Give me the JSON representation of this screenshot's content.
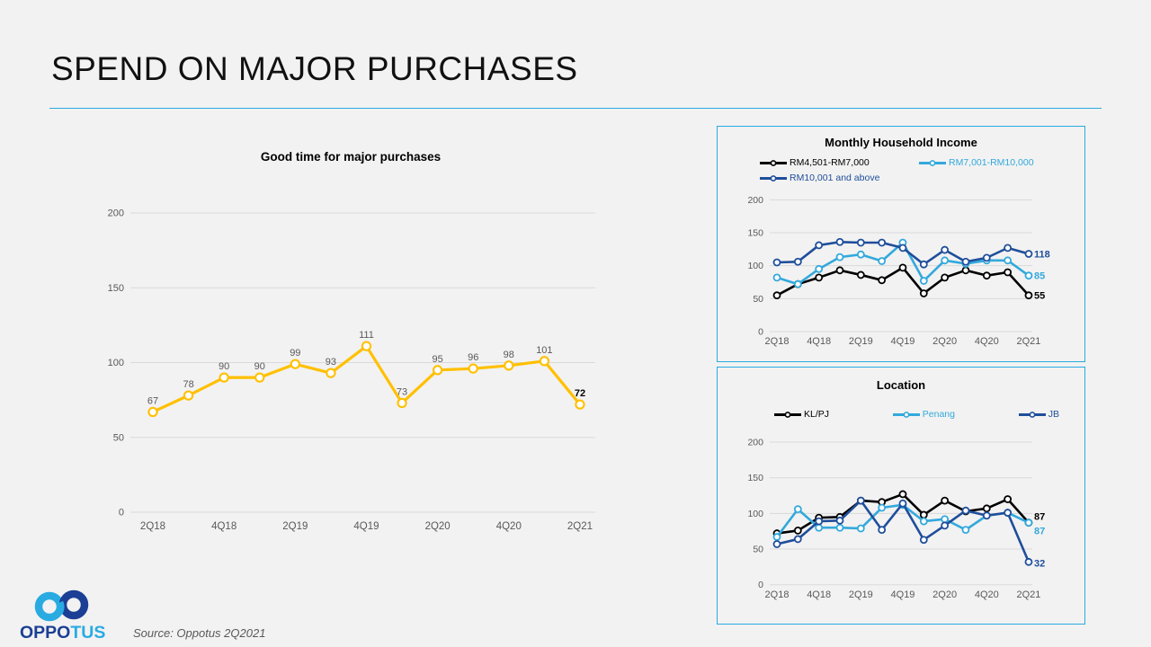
{
  "slide": {
    "title": "SPEND ON MAJOR PURCHASES"
  },
  "colors": {
    "accent": "#29ABE2",
    "slide_bg": "#F2F2F2",
    "grid": "#D9D9D9",
    "axis_text": "#595959",
    "series_yellow": "#FFC000",
    "series_black": "#000000",
    "series_lightblue": "#33A9DC",
    "series_navy": "#1F4E9B",
    "logo_navy": "#1B3F94",
    "logo_blue": "#29ABE2"
  },
  "charts": [
    {
      "type": "line",
      "title": "Good time for major purchases",
      "x_labels": [
        "2Q18",
        "4Q18",
        "2Q19",
        "4Q19",
        "2Q20",
        "4Q20",
        "2Q21"
      ],
      "y_ticks": [
        0,
        50,
        100,
        150,
        200
      ],
      "ylim": [
        0,
        200
      ],
      "legend_position": "none",
      "grid": true,
      "series": [
        {
          "name": "Good time for major purchases",
          "color": "#FFC000",
          "values": [
            67,
            78,
            90,
            90,
            99,
            93,
            111,
            73,
            95,
            96,
            98,
            101,
            72
          ]
        }
      ]
    },
    {
      "type": "line",
      "title": "Monthly Household Income",
      "x_labels": [
        "2Q18",
        "4Q18",
        "2Q19",
        "4Q19",
        "2Q20",
        "4Q20",
        "2Q21"
      ],
      "y_ticks": [
        0,
        50,
        100,
        150,
        200
      ],
      "ylim": [
        0,
        200
      ],
      "legend_position": "top",
      "grid": true,
      "series": [
        {
          "name": "RM4,501-RM7,000",
          "color": "#000000",
          "end_label": "55",
          "values": [
            55,
            72,
            82,
            93,
            86,
            78,
            97,
            58,
            82,
            93,
            85,
            90,
            55
          ]
        },
        {
          "name": "RM7,001-RM10,000",
          "color": "#33A9DC",
          "end_label": "85",
          "values": [
            82,
            72,
            95,
            113,
            117,
            107,
            135,
            77,
            108,
            103,
            108,
            108,
            85
          ]
        },
        {
          "name": "RM10,001 and above",
          "color": "#1F4E9B",
          "end_label": "118",
          "values": [
            105,
            106,
            131,
            136,
            135,
            135,
            127,
            102,
            124,
            106,
            112,
            127,
            118
          ]
        }
      ]
    },
    {
      "type": "line",
      "title": "Location",
      "x_labels": [
        "2Q18",
        "4Q18",
        "2Q19",
        "4Q19",
        "2Q20",
        "4Q20",
        "2Q21"
      ],
      "y_ticks": [
        0,
        50,
        100,
        150,
        200
      ],
      "ylim": [
        0,
        200
      ],
      "legend_position": "top",
      "grid": true,
      "series": [
        {
          "name": "KL/PJ",
          "color": "#000000",
          "end_label": "87",
          "values": [
            72,
            76,
            94,
            95,
            118,
            116,
            127,
            98,
            118,
            103,
            107,
            120,
            87
          ]
        },
        {
          "name": "Penang",
          "color": "#33A9DC",
          "end_label": "87",
          "values": [
            67,
            106,
            80,
            80,
            79,
            108,
            112,
            89,
            92,
            77,
            97,
            101,
            87
          ]
        },
        {
          "name": "JB",
          "color": "#1F4E9B",
          "end_label": "32",
          "values": [
            57,
            64,
            89,
            90,
            118,
            77,
            114,
            63,
            83,
            104,
            97,
            101,
            32
          ]
        }
      ]
    }
  ],
  "footer": {
    "logo_text_primary": "OPPO",
    "logo_text_secondary": "TUS",
    "source": "Source: Oppotus 2Q2021"
  }
}
